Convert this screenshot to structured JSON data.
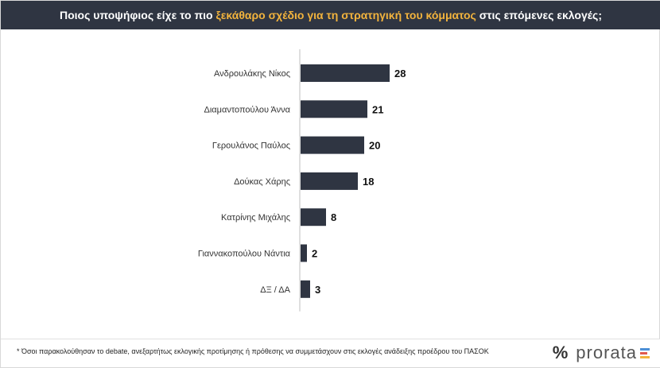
{
  "header": {
    "title_part1": "Ποιος υποψήφιος είχε το πιο ",
    "title_highlight": "ξεκάθαρο σχέδιο για τη στρατηγική του κόμματος",
    "title_part2": " στις επόμενες εκλογές;"
  },
  "chart_data": {
    "type": "bar",
    "orientation": "horizontal",
    "categories": [
      "Ανδρουλάκης Νίκος",
      "Διαμαντοπούλου Άννα",
      "Γερουλάνος Παύλος",
      "Δούκας Χάρης",
      "Κατρίνης Μιχάλης",
      "Γιαννακοπούλου Νάντια",
      "ΔΞ / ΔΑ"
    ],
    "values": [
      28,
      21,
      20,
      18,
      8,
      2,
      3
    ],
    "xlim": [
      0,
      28
    ],
    "bar_color": "#2f3542"
  },
  "footer": {
    "note": "* Όσοι παρακολούθησαν το debate, ανεξαρτήτως εκλογικής προτίμησης ή πρόθεσης να συμμετάσχουν στις εκλογές ανάδειξης προέδρου του ΠΑΣΟΚ",
    "logo_symbol": "%",
    "logo_text": "prorata"
  }
}
